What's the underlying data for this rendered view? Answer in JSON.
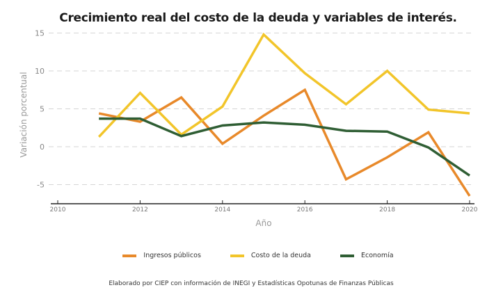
{
  "chart_data": {
    "type": "line",
    "title": "Crecimiento real del costo de la deuda y variables de interés.",
    "xlabel": "Año",
    "ylabel": "Variación porcentual",
    "xlim": [
      2010,
      2020
    ],
    "ylim": [
      -7.5,
      15
    ],
    "xticks": [
      2010,
      2012,
      2014,
      2016,
      2018,
      2020
    ],
    "yticks": [
      15,
      10,
      5,
      0,
      -5
    ],
    "grid": "horizontal dashed",
    "legend_position": "bottom",
    "x": [
      2011,
      2012,
      2013,
      2014,
      2015,
      2016,
      2017,
      2018,
      2019,
      2020
    ],
    "series": [
      {
        "name": "Ingresos públicos",
        "color": "#E8892A",
        "values": [
          4.4,
          3.3,
          6.5,
          0.4,
          4.1,
          7.5,
          -4.3,
          -1.4,
          1.9,
          -6.5
        ]
      },
      {
        "name": "Costo de la deuda",
        "color": "#F2C52A",
        "values": [
          1.3,
          7.1,
          1.6,
          5.3,
          14.8,
          9.7,
          5.6,
          10.0,
          4.9,
          4.4
        ]
      },
      {
        "name": "Economía",
        "color": "#2F5E34",
        "values": [
          3.7,
          3.7,
          1.4,
          2.8,
          3.2,
          2.9,
          2.1,
          2.0,
          -0.1,
          -3.8
        ]
      }
    ],
    "caption": "Elaborado por CIEP con información de INEGI y Estadísticas Opotunas de Finanzas Públicas"
  }
}
